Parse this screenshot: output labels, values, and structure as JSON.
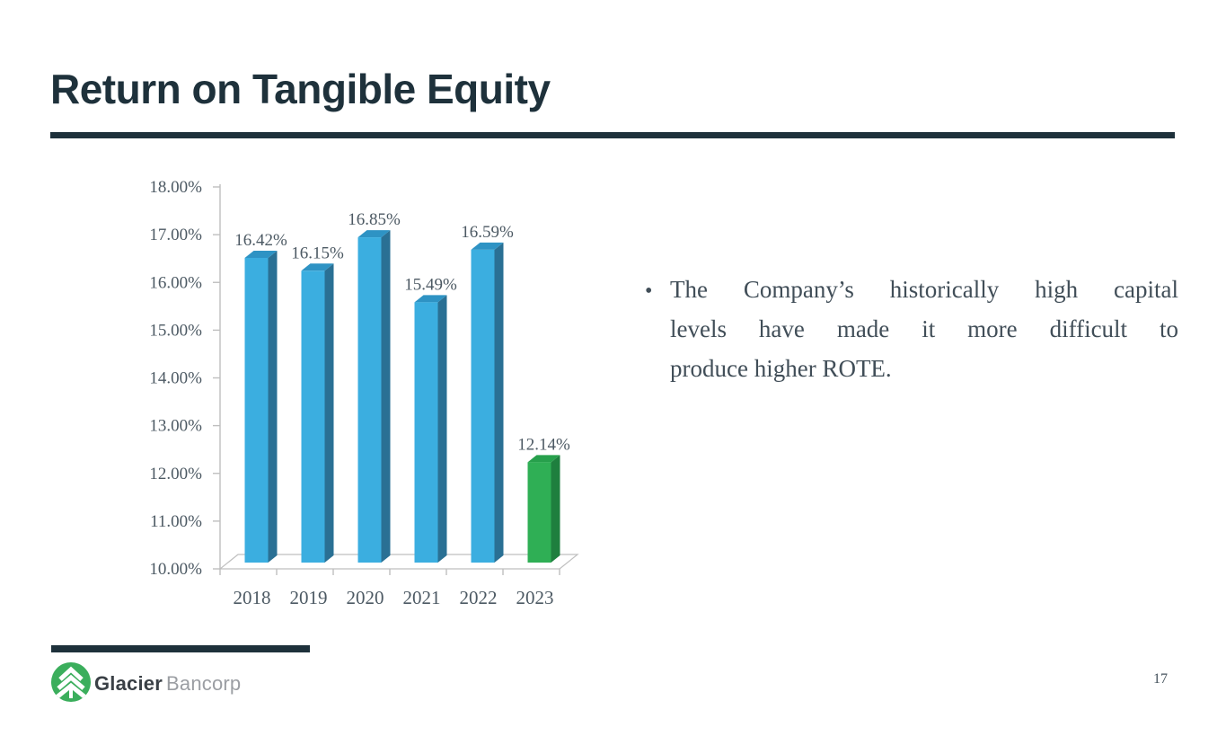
{
  "header": {
    "title": "Return on Tangible Equity"
  },
  "accent_color": "#1E313B",
  "chart_data": {
    "type": "bar",
    "style": "3d-column",
    "title": "",
    "xlabel": "",
    "ylabel": "",
    "categories": [
      "2018",
      "2019",
      "2020",
      "2021",
      "2022",
      "2023"
    ],
    "values": [
      16.42,
      16.15,
      16.85,
      15.49,
      16.59,
      12.14
    ],
    "data_labels": [
      "16.42%",
      "16.15%",
      "16.85%",
      "15.49%",
      "16.59%",
      "12.14%"
    ],
    "ylim": [
      10,
      18
    ],
    "ytick_step": 1,
    "ytick_labels": [
      "10.00%",
      "11.00%",
      "12.00%",
      "13.00%",
      "14.00%",
      "15.00%",
      "16.00%",
      "17.00%",
      "18.00%"
    ],
    "grid": false,
    "legend": false,
    "bar_color_keys": [
      "blue",
      "blue",
      "blue",
      "blue",
      "blue",
      "green"
    ],
    "colors": {
      "blue": {
        "front": "#3BAEE0",
        "top": "#2E93C4",
        "side": "#2A7094"
      },
      "green": {
        "front": "#2FAF55",
        "top": "#27A04C",
        "side": "#1E7F3E"
      },
      "axis": "#BFBFBF",
      "text": "#4C5963"
    }
  },
  "bullet": {
    "marker": "•",
    "lines": [
      "The Company’s historically high capital",
      "levels have made it more difficult to",
      "produce higher ROTE."
    ]
  },
  "footer": {
    "brand_bold": "Glacier",
    "brand_light": "Bancorp",
    "logo_icon": "evergreen-tree-icon",
    "logo_color": "#3BAE5C",
    "page_number": "17"
  }
}
